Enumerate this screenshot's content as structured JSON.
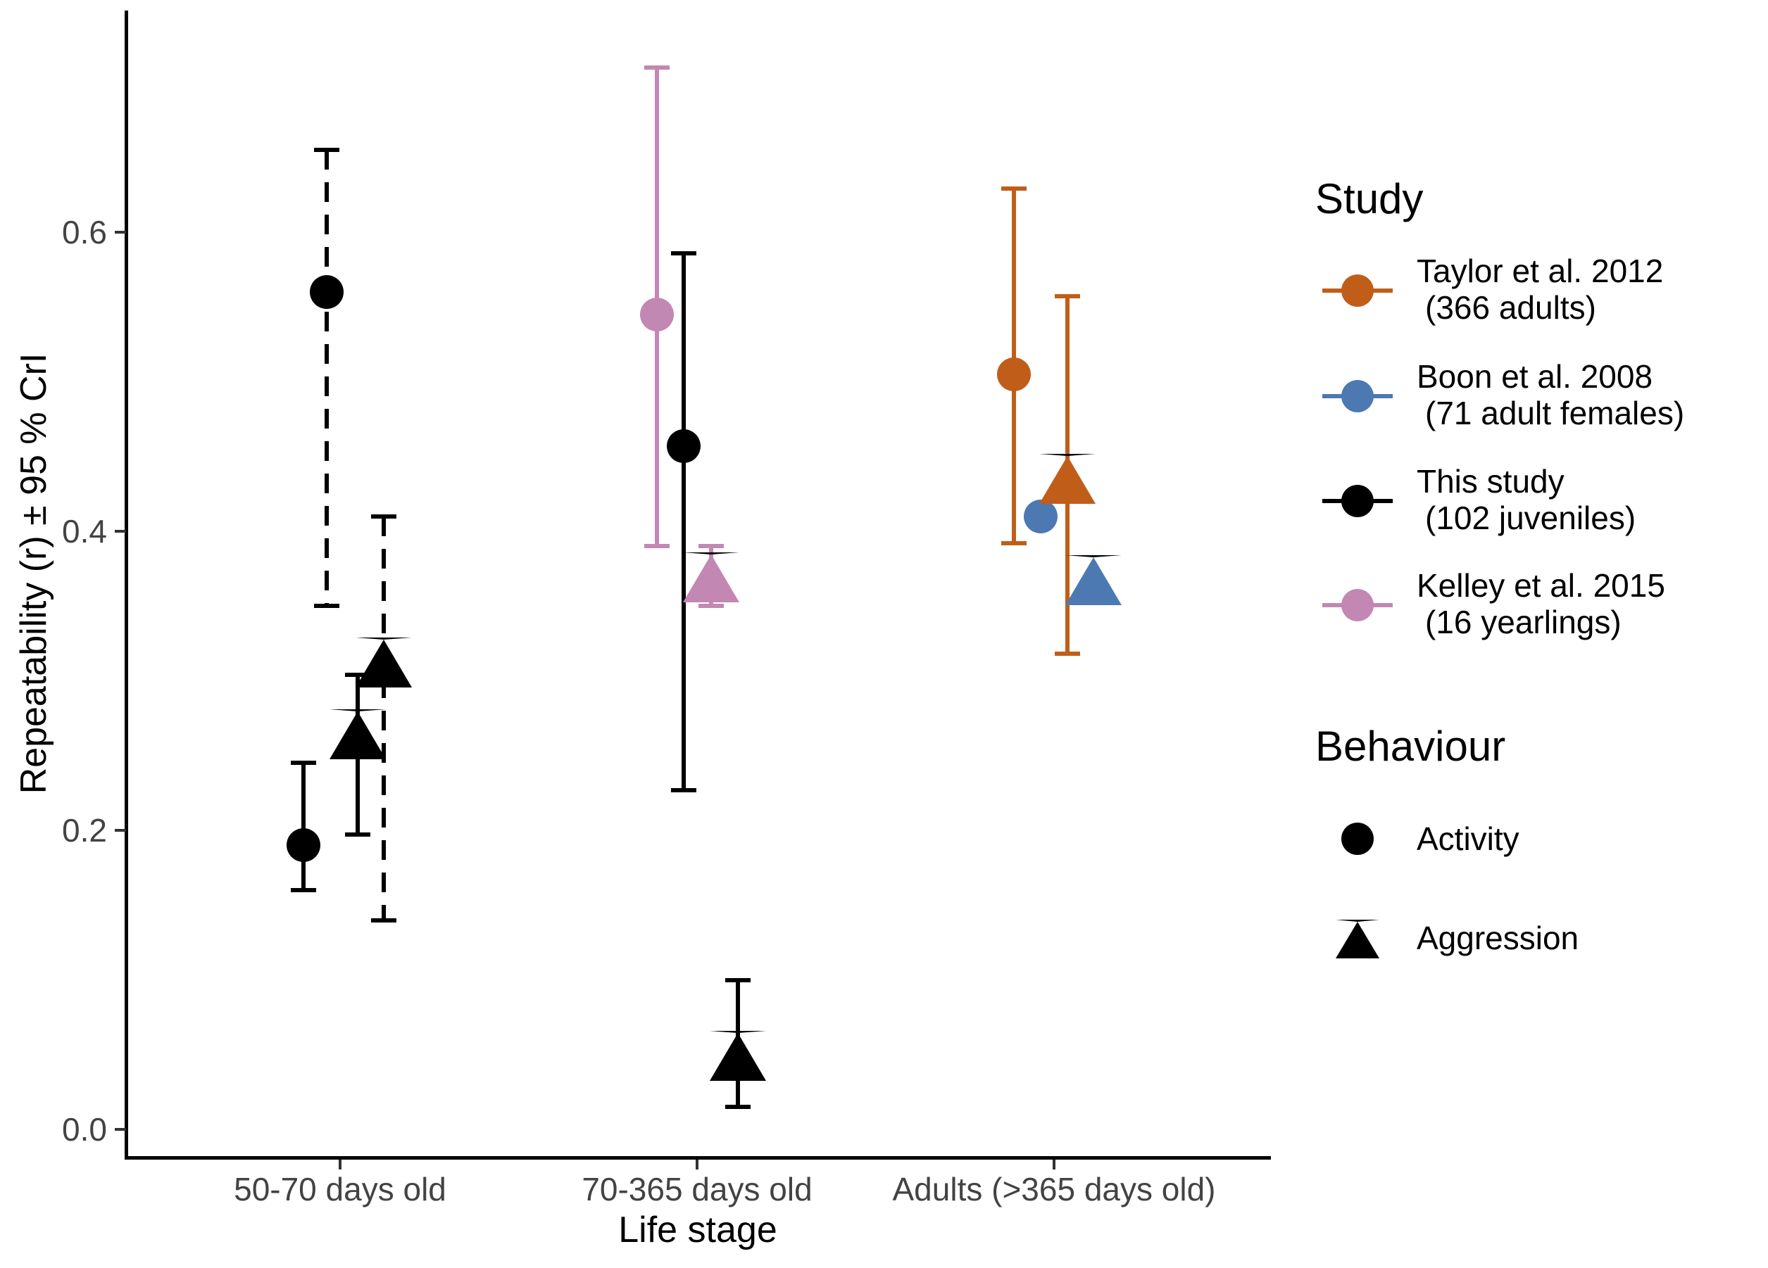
{
  "chart_data": {
    "type": "scatter",
    "title": "",
    "xlabel": "Life stage",
    "ylabel": "Repeatability (r) ± 95 % CrI",
    "categories": [
      "50-70 days old",
      "70-365 days old",
      "Adults (>365 days old)"
    ],
    "y_ticks": [
      0.0,
      0.2,
      0.4,
      0.6
    ],
    "ylim": [
      -0.02,
      0.75
    ],
    "grid": false,
    "legend_position": "right",
    "points": [
      {
        "study": "This study",
        "behaviour": "Activity",
        "marker": "circle",
        "color": "black",
        "category": 0,
        "x_offset": -52,
        "value": 0.19,
        "ci_low": 0.16,
        "ci_high": 0.245,
        "ci_style": "solid"
      },
      {
        "study": "This study",
        "behaviour": "Activity",
        "marker": "circle",
        "color": "black",
        "category": 0,
        "x_offset": -19,
        "value": 0.56,
        "ci_low": 0.35,
        "ci_high": 0.655,
        "ci_style": "dashed"
      },
      {
        "study": "This study",
        "behaviour": "Aggression",
        "marker": "triangle",
        "color": "black",
        "category": 0,
        "x_offset": 25,
        "value": 0.265,
        "ci_low": 0.197,
        "ci_high": 0.304,
        "ci_style": "solid"
      },
      {
        "study": "This study",
        "behaviour": "Aggression",
        "marker": "triangle",
        "color": "black",
        "category": 0,
        "x_offset": 62,
        "value": 0.313,
        "ci_low": 0.14,
        "ci_high": 0.41,
        "ci_style": "dashed"
      },
      {
        "study": "Kelley et al. 2015",
        "behaviour": "Activity",
        "marker": "circle",
        "color": "pink",
        "category": 1,
        "x_offset": -57,
        "value": 0.545,
        "ci_low": 0.39,
        "ci_high": 0.71,
        "ci_style": "solid"
      },
      {
        "study": "This study",
        "behaviour": "Activity",
        "marker": "circle",
        "color": "black",
        "category": 1,
        "x_offset": -19,
        "value": 0.457,
        "ci_low": 0.227,
        "ci_high": 0.586,
        "ci_style": "solid"
      },
      {
        "study": "Kelley et al. 2015",
        "behaviour": "Aggression",
        "marker": "triangle",
        "color": "pink",
        "category": 1,
        "x_offset": 20,
        "value": 0.37,
        "ci_low": 0.35,
        "ci_high": 0.39,
        "ci_style": "solid"
      },
      {
        "study": "This study",
        "behaviour": "Aggression",
        "marker": "triangle",
        "color": "black",
        "category": 1,
        "x_offset": 58,
        "value": 0.05,
        "ci_low": 0.015,
        "ci_high": 0.1,
        "ci_style": "solid"
      },
      {
        "study": "Taylor et al. 2012",
        "behaviour": "Activity",
        "marker": "circle",
        "color": "orange",
        "category": 2,
        "x_offset": -57,
        "value": 0.505,
        "ci_low": 0.392,
        "ci_high": 0.629,
        "ci_style": "solid"
      },
      {
        "study": "Boon et al. 2008",
        "behaviour": "Activity",
        "marker": "circle",
        "color": "blue",
        "category": 2,
        "x_offset": -19,
        "value": 0.41,
        "ci_low": null,
        "ci_high": null,
        "ci_style": "none"
      },
      {
        "study": "Taylor et al. 2012",
        "behaviour": "Aggression",
        "marker": "triangle",
        "color": "orange",
        "category": 2,
        "x_offset": 19,
        "value": 0.436,
        "ci_low": 0.318,
        "ci_high": 0.557,
        "ci_style": "solid"
      },
      {
        "study": "Boon et al. 2008",
        "behaviour": "Aggression",
        "marker": "triangle",
        "color": "blue",
        "category": 2,
        "x_offset": 56,
        "value": 0.368,
        "ci_low": null,
        "ci_high": null,
        "ci_style": "none"
      }
    ]
  },
  "colors": {
    "black": "#000000",
    "orange": "#C05E19",
    "blue": "#4C79B2",
    "pink": "#C387B3",
    "tick_label": "#434343",
    "axis": "#000000",
    "background": "#FFFFFF"
  },
  "legend": {
    "study": {
      "title": "Study",
      "items": [
        {
          "line1": "Taylor et al. 2012",
          "line2": "(366 adults)",
          "color": "orange",
          "marker": "circle"
        },
        {
          "line1": "Boon et al. 2008",
          "line2": "(71 adult females)",
          "color": "blue",
          "marker": "circle"
        },
        {
          "line1": "This study",
          "line2": "(102 juveniles)",
          "color": "black",
          "marker": "circle"
        },
        {
          "line1": "Kelley et al. 2015",
          "line2": "(16 yearlings)",
          "color": "pink",
          "marker": "circle"
        }
      ]
    },
    "behaviour": {
      "title": "Behaviour",
      "items": [
        {
          "label": "Activity",
          "marker": "circle"
        },
        {
          "label": "Aggression",
          "marker": "triangle"
        }
      ]
    }
  }
}
